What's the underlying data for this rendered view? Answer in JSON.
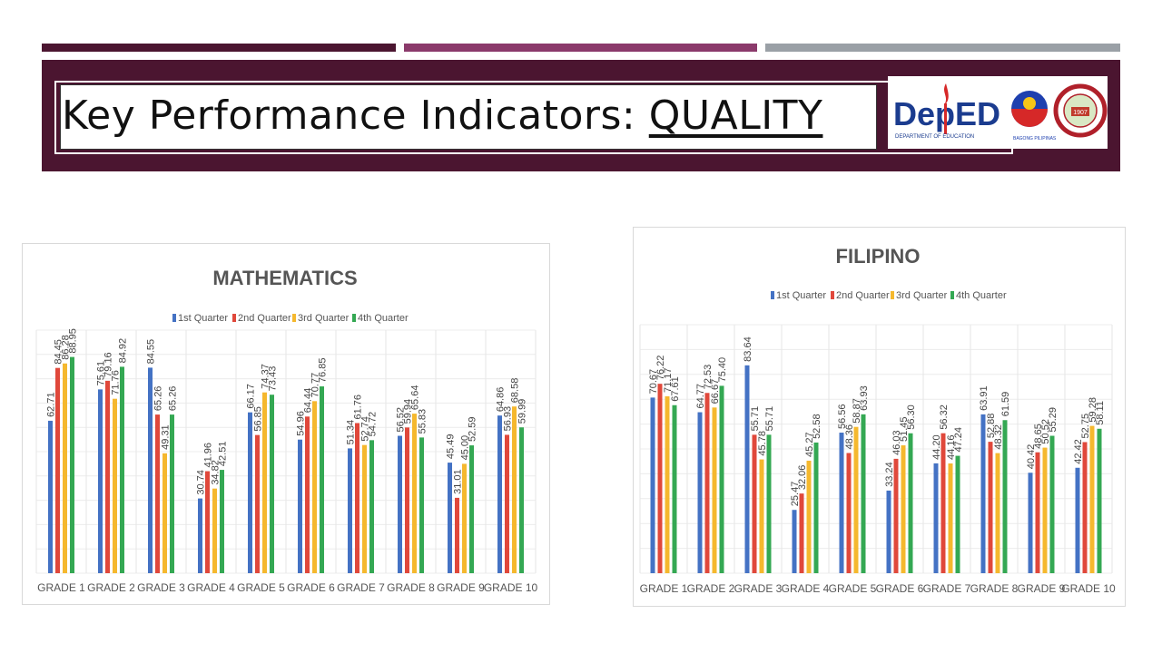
{
  "slide": {
    "title_prefix": "Key Performance Indicators: ",
    "title_emphasis": "QUALITY",
    "colors": {
      "band": "#4b1530",
      "stripe1": "#4b1530",
      "stripe2": "#8b3a6b",
      "stripe3": "#9aa0a6"
    }
  },
  "logos": {
    "deped_text": "DepED",
    "deped_sub": "DEPARTMENT OF EDUCATION",
    "bagong_text": "BAGONG PILIPINAS",
    "seal_year": "1907"
  },
  "chart_data": [
    {
      "type": "bar",
      "title": "MATHEMATICS",
      "categories": [
        "GRADE 1",
        "GRADE 2",
        "GRADE 3",
        "GRADE 4",
        "GRADE 5",
        "GRADE 6",
        "GRADE 7",
        "GRADE 8",
        "GRADE 9",
        "GRADE 10"
      ],
      "legend_position": "top",
      "ylim": [
        0,
        100
      ],
      "series": [
        {
          "name": "1st Quarter",
          "color": "#4472c4",
          "values": [
            62.71,
            75.61,
            84.55,
            30.74,
            66.17,
            54.96,
            51.34,
            56.52,
            45.49,
            64.86
          ]
        },
        {
          "name": "2nd Quarter",
          "color": "#e0483b",
          "values": [
            84.45,
            79.16,
            65.26,
            41.96,
            56.85,
            64.44,
            61.76,
            59.94,
            31.01,
            56.93
          ]
        },
        {
          "name": "3rd Quarter",
          "color": "#f5b82e",
          "values": [
            86.28,
            71.76,
            49.31,
            34.82,
            74.37,
            70.77,
            52.74,
            65.64,
            45.0,
            68.58
          ]
        },
        {
          "name": "4th Quarter",
          "color": "#34a853",
          "values": [
            88.95,
            84.92,
            65.26,
            42.51,
            73.43,
            76.85,
            54.72,
            55.83,
            52.59,
            59.99
          ]
        }
      ]
    },
    {
      "type": "bar",
      "title": "FILIPINO",
      "categories": [
        "GRADE 1",
        "GRADE 2",
        "GRADE 3",
        "GRADE 4",
        "GRADE 5",
        "GRADE 6",
        "GRADE 7",
        "GRADE 8",
        "GRADE 9",
        "GRADE 10"
      ],
      "legend_position": "top",
      "ylim": [
        0,
        100
      ],
      "series": [
        {
          "name": "1st Quarter",
          "color": "#4472c4",
          "values": [
            70.67,
            64.77,
            83.64,
            25.47,
            56.56,
            33.24,
            44.2,
            63.91,
            40.42,
            42.42
          ]
        },
        {
          "name": "2nd Quarter",
          "color": "#e0483b",
          "values": [
            76.22,
            72.53,
            55.71,
            32.06,
            48.36,
            46.03,
            56.32,
            52.88,
            48.65,
            52.75
          ]
        },
        {
          "name": "3rd Quarter",
          "color": "#f5b82e",
          "values": [
            71.17,
            66.67,
            45.78,
            45.27,
            58.87,
            51.45,
            44.16,
            48.32,
            50.52,
            59.28
          ]
        },
        {
          "name": "4th Quarter",
          "color": "#34a853",
          "values": [
            67.61,
            75.4,
            55.71,
            52.58,
            63.93,
            56.3,
            47.24,
            61.59,
            55.29,
            58.11
          ]
        }
      ]
    }
  ]
}
